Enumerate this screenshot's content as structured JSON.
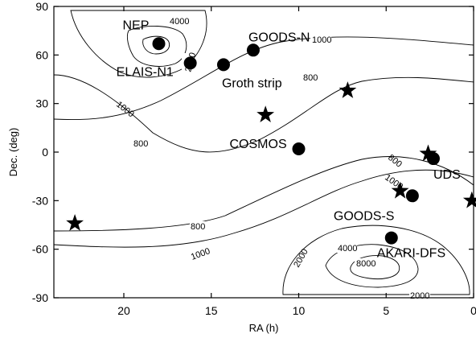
{
  "chart_data": {
    "type": "scatter",
    "title": "",
    "xlabel": "RA (h)",
    "ylabel": "Dec. (deg)",
    "xlim": [
      24,
      0
    ],
    "ylim": [
      -90,
      90
    ],
    "x_ticks": [
      20,
      15,
      10,
      5,
      0
    ],
    "y_ticks": [
      90,
      60,
      30,
      0,
      -30,
      -60,
      -90
    ],
    "grid": false,
    "legend": "none",
    "fields": [
      {
        "label": "NEP",
        "ra": 18.0,
        "dec": 67
      },
      {
        "label": "ELAIS-N1",
        "ra": 16.2,
        "dec": 55
      },
      {
        "label": "GOODS-N",
        "ra": 12.6,
        "dec": 63
      },
      {
        "label": "Groth strip",
        "ra": 14.3,
        "dec": 54
      },
      {
        "label": "COSMOS",
        "ra": 10.0,
        "dec": 2
      },
      {
        "label": "UDS",
        "ra": 2.3,
        "dec": -4
      },
      {
        "label": "GOODS-S",
        "ra": 3.5,
        "dec": -27
      },
      {
        "label": "AKARI-DFS",
        "ra": 4.7,
        "dec": -53
      }
    ],
    "stars": [
      {
        "ra": 7.2,
        "dec": 38
      },
      {
        "ra": 11.9,
        "dec": 23
      },
      {
        "ra": 2.6,
        "dec": -1
      },
      {
        "ra": 4.2,
        "dec": -24
      },
      {
        "ra": 0.1,
        "dec": -30
      },
      {
        "ra": 22.8,
        "dec": -44
      }
    ],
    "contour_levels": [
      "800",
      "1000",
      "2000",
      "4000",
      "8000"
    ],
    "marker_color": "#000000"
  }
}
